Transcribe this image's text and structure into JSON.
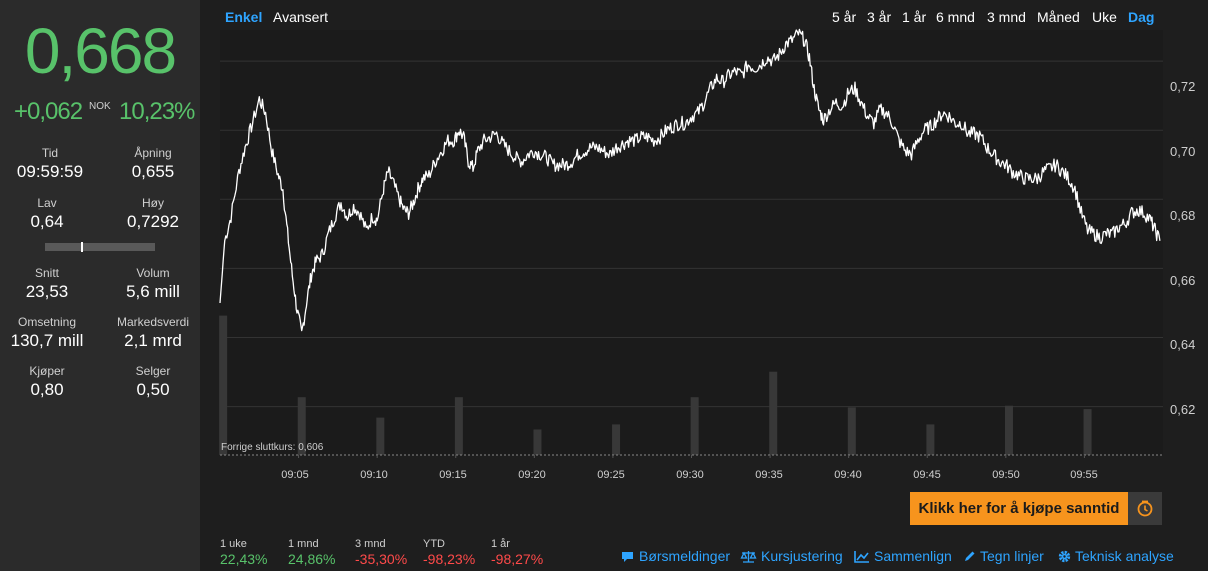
{
  "quote": {
    "price": "0,668",
    "change": "+0,062",
    "currency": "NOK",
    "change_pct": "10,23%"
  },
  "stats": [
    {
      "label": "Tid",
      "value": "09:59:59"
    },
    {
      "label": "Åpning",
      "value": "0,655"
    },
    {
      "label": "Lav",
      "value": "0,64"
    },
    {
      "label": "Høy",
      "value": "0,7292"
    },
    {
      "label": "Snitt",
      "value": "23,53"
    },
    {
      "label": "Volum",
      "value": "5,6 mill"
    },
    {
      "label": "Omsetning",
      "value": "130,7 mill"
    },
    {
      "label": "Markedsverdi",
      "value": "2,1 mrd"
    },
    {
      "label": "Kjøper",
      "value": "0,80"
    },
    {
      "label": "Selger",
      "value": "0,50"
    }
  ],
  "day_range_position": 0.33,
  "chart_modes": [
    "Enkel",
    "Avansert"
  ],
  "active_mode": "Enkel",
  "periods": [
    "5 år",
    "3 år",
    "1 år",
    "6 mnd",
    "3 mnd",
    "Måned",
    "Uke",
    "Dag"
  ],
  "active_period": "Dag",
  "prev_close_label": "Forrige sluttkurs: 0,606",
  "buy_button": "Klikk her for å kjøpe sanntid",
  "performance": [
    {
      "label": "1 uke",
      "value": "22,43%",
      "sign": "pos"
    },
    {
      "label": "1 mnd",
      "value": "24,86%",
      "sign": "pos"
    },
    {
      "label": "3 mnd",
      "value": "-35,30%",
      "sign": "neg"
    },
    {
      "label": "YTD",
      "value": "-98,23%",
      "sign": "neg"
    },
    {
      "label": "1 år",
      "value": "-98,27%",
      "sign": "neg"
    }
  ],
  "tools": [
    {
      "label": "Børsmeldinger",
      "icon": "chat-icon"
    },
    {
      "label": "Kursjustering",
      "icon": "scale-icon"
    },
    {
      "label": "Sammenlign",
      "icon": "trend-icon"
    },
    {
      "label": "Tegn linjer",
      "icon": "pencil-icon"
    },
    {
      "label": "Teknisk analyse",
      "icon": "gear-icon"
    }
  ],
  "colors": {
    "up": "#58c26a",
    "down": "#ff4a4a",
    "accent": "#2ea4ff",
    "buy": "#f7941d"
  },
  "chart_data": {
    "type": "line",
    "y_tick_labels": [
      "0,72",
      "0,70",
      "0,68",
      "0,66",
      "0,64",
      "0,62"
    ],
    "y_ticks": [
      0.72,
      0.7,
      0.68,
      0.66,
      0.64,
      0.62
    ],
    "ylim": [
      0.606,
      0.729
    ],
    "x_tick_labels": [
      "09:05",
      "09:10",
      "09:15",
      "09:20",
      "09:25",
      "09:30",
      "09:35",
      "09:40",
      "09:45",
      "09:50",
      "09:55"
    ],
    "xlim_minutes": [
      60,
      120
    ],
    "previous_close": 0.606,
    "series": [
      {
        "points": [
          [
            60.0,
            0.65
          ],
          [
            60.3,
            0.668
          ],
          [
            60.7,
            0.675
          ],
          [
            61.2,
            0.688
          ],
          [
            61.6,
            0.695
          ],
          [
            62.0,
            0.701
          ],
          [
            62.5,
            0.709
          ],
          [
            62.9,
            0.705
          ],
          [
            63.3,
            0.694
          ],
          [
            63.7,
            0.687
          ],
          [
            64.0,
            0.683
          ],
          [
            64.3,
            0.67
          ],
          [
            64.6,
            0.658
          ],
          [
            64.9,
            0.648
          ],
          [
            65.2,
            0.641
          ],
          [
            65.5,
            0.65
          ],
          [
            65.8,
            0.658
          ],
          [
            66.1,
            0.662
          ],
          [
            66.5,
            0.664
          ],
          [
            66.9,
            0.67
          ],
          [
            67.3,
            0.675
          ],
          [
            67.7,
            0.679
          ],
          [
            68.1,
            0.675
          ],
          [
            68.5,
            0.678
          ],
          [
            68.9,
            0.676
          ],
          [
            69.3,
            0.671
          ],
          [
            69.7,
            0.675
          ],
          [
            70.0,
            0.674
          ],
          [
            70.4,
            0.683
          ],
          [
            70.7,
            0.688
          ],
          [
            71.0,
            0.685
          ],
          [
            71.4,
            0.68
          ],
          [
            71.7,
            0.677
          ],
          [
            72.0,
            0.676
          ],
          [
            72.3,
            0.679
          ],
          [
            72.6,
            0.683
          ],
          [
            72.9,
            0.686
          ],
          [
            73.3,
            0.687
          ],
          [
            73.7,
            0.691
          ],
          [
            74.1,
            0.694
          ],
          [
            74.5,
            0.697
          ],
          [
            74.9,
            0.697
          ],
          [
            75.2,
            0.7
          ],
          [
            75.5,
            0.698
          ],
          [
            75.8,
            0.691
          ],
          [
            76.1,
            0.689
          ],
          [
            76.4,
            0.694
          ],
          [
            76.8,
            0.697
          ],
          [
            77.2,
            0.698
          ],
          [
            77.6,
            0.699
          ],
          [
            78.0,
            0.696
          ],
          [
            78.4,
            0.694
          ],
          [
            78.8,
            0.692
          ],
          [
            79.2,
            0.691
          ],
          [
            79.6,
            0.693
          ],
          [
            80.0,
            0.694
          ],
          [
            80.4,
            0.693
          ],
          [
            80.8,
            0.692
          ],
          [
            81.2,
            0.69
          ],
          [
            81.6,
            0.69
          ],
          [
            82.0,
            0.69
          ],
          [
            82.4,
            0.691
          ],
          [
            82.8,
            0.693
          ],
          [
            83.2,
            0.694
          ],
          [
            83.6,
            0.695
          ],
          [
            84.0,
            0.695
          ],
          [
            84.4,
            0.694
          ],
          [
            84.8,
            0.693
          ],
          [
            85.2,
            0.695
          ],
          [
            85.6,
            0.696
          ],
          [
            86.0,
            0.697
          ],
          [
            86.4,
            0.697
          ],
          [
            86.8,
            0.698
          ],
          [
            87.2,
            0.698
          ],
          [
            87.6,
            0.697
          ],
          [
            88.0,
            0.698
          ],
          [
            88.4,
            0.7
          ],
          [
            88.8,
            0.701
          ],
          [
            89.2,
            0.702
          ],
          [
            89.6,
            0.702
          ],
          [
            90.0,
            0.704
          ],
          [
            90.4,
            0.705
          ],
          [
            90.8,
            0.708
          ],
          [
            91.2,
            0.712
          ],
          [
            91.6,
            0.715
          ],
          [
            92.0,
            0.714
          ],
          [
            92.4,
            0.716
          ],
          [
            92.8,
            0.717
          ],
          [
            93.2,
            0.716
          ],
          [
            93.6,
            0.719
          ],
          [
            94.0,
            0.718
          ],
          [
            94.4,
            0.719
          ],
          [
            94.8,
            0.721
          ],
          [
            95.2,
            0.72
          ],
          [
            95.6,
            0.722
          ],
          [
            96.0,
            0.725
          ],
          [
            96.4,
            0.726
          ],
          [
            96.8,
            0.728
          ],
          [
            97.2,
            0.726
          ],
          [
            97.5,
            0.721
          ],
          [
            97.8,
            0.712
          ],
          [
            98.1,
            0.706
          ],
          [
            98.4,
            0.703
          ],
          [
            98.8,
            0.706
          ],
          [
            99.2,
            0.708
          ],
          [
            99.6,
            0.707
          ],
          [
            100.0,
            0.711
          ],
          [
            100.4,
            0.712
          ],
          [
            100.8,
            0.708
          ],
          [
            101.2,
            0.704
          ],
          [
            101.6,
            0.702
          ],
          [
            102.0,
            0.706
          ],
          [
            102.4,
            0.705
          ],
          [
            102.8,
            0.702
          ],
          [
            103.2,
            0.697
          ],
          [
            103.6,
            0.694
          ],
          [
            104.0,
            0.693
          ],
          [
            104.4,
            0.697
          ],
          [
            104.8,
            0.7
          ],
          [
            105.2,
            0.701
          ],
          [
            105.6,
            0.703
          ],
          [
            106.0,
            0.705
          ],
          [
            106.4,
            0.704
          ],
          [
            106.8,
            0.702
          ],
          [
            107.2,
            0.702
          ],
          [
            107.6,
            0.699
          ],
          [
            108.0,
            0.699
          ],
          [
            108.4,
            0.698
          ],
          [
            108.8,
            0.695
          ],
          [
            109.2,
            0.693
          ],
          [
            109.6,
            0.691
          ],
          [
            110.0,
            0.69
          ],
          [
            110.4,
            0.688
          ],
          [
            110.8,
            0.687
          ],
          [
            111.2,
            0.686
          ],
          [
            111.6,
            0.686
          ],
          [
            112.0,
            0.686
          ],
          [
            112.4,
            0.688
          ],
          [
            112.8,
            0.689
          ],
          [
            113.2,
            0.69
          ],
          [
            113.6,
            0.688
          ],
          [
            114.0,
            0.686
          ],
          [
            114.4,
            0.683
          ],
          [
            114.8,
            0.676
          ],
          [
            115.2,
            0.671
          ],
          [
            115.6,
            0.67
          ],
          [
            116.0,
            0.669
          ],
          [
            116.4,
            0.67
          ],
          [
            116.8,
            0.67
          ],
          [
            117.2,
            0.672
          ],
          [
            117.6,
            0.673
          ],
          [
            118.0,
            0.676
          ],
          [
            118.4,
            0.677
          ],
          [
            118.8,
            0.676
          ],
          [
            119.2,
            0.674
          ],
          [
            119.5,
            0.671
          ],
          [
            119.8,
            0.668
          ]
        ]
      }
    ],
    "volume_bars": [
      {
        "minute": 60.2,
        "level": 0.82
      },
      {
        "minute": 65.2,
        "level": 0.34
      },
      {
        "minute": 70.2,
        "level": 0.22
      },
      {
        "minute": 75.2,
        "level": 0.34
      },
      {
        "minute": 80.2,
        "level": 0.15
      },
      {
        "minute": 85.2,
        "level": 0.18
      },
      {
        "minute": 90.2,
        "level": 0.34
      },
      {
        "minute": 95.2,
        "level": 0.49
      },
      {
        "minute": 100.2,
        "level": 0.28
      },
      {
        "minute": 105.2,
        "level": 0.18
      },
      {
        "minute": 110.2,
        "level": 0.29
      },
      {
        "minute": 115.2,
        "level": 0.27
      }
    ]
  }
}
